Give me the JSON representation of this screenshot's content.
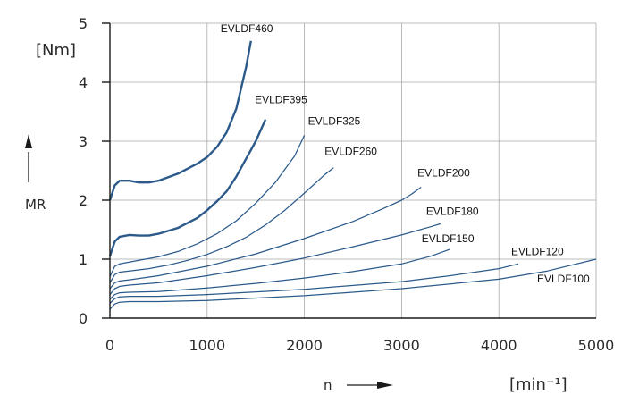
{
  "chart_data": {
    "type": "line",
    "title": "",
    "y_unit": "[Nm]",
    "y_title": "MR",
    "x_title": "n",
    "x_unit": "[min⁻¹]",
    "xlim": [
      0,
      5000
    ],
    "ylim": [
      0,
      5
    ],
    "x_ticks": [
      "0",
      "1000",
      "2000",
      "3000",
      "4000",
      "5000"
    ],
    "y_ticks": [
      "0",
      "1",
      "2",
      "3",
      "4",
      "5"
    ],
    "grid": true,
    "line_color": "#2b5a8a",
    "series": [
      {
        "name": "EVLDF460",
        "bold": true,
        "x": [
          0,
          50,
          100,
          200,
          300,
          400,
          500,
          700,
          900,
          1000,
          1100,
          1200,
          1300,
          1400,
          1450
        ],
        "y": [
          2.0,
          2.25,
          2.33,
          2.33,
          2.3,
          2.3,
          2.33,
          2.45,
          2.62,
          2.73,
          2.9,
          3.15,
          3.55,
          4.25,
          4.7
        ]
      },
      {
        "name": "EVLDF395",
        "bold": true,
        "x": [
          0,
          50,
          100,
          200,
          300,
          400,
          500,
          700,
          900,
          1000,
          1100,
          1200,
          1300,
          1400,
          1500,
          1600
        ],
        "y": [
          1.05,
          1.3,
          1.38,
          1.41,
          1.4,
          1.4,
          1.43,
          1.53,
          1.7,
          1.83,
          1.98,
          2.15,
          2.4,
          2.7,
          3.0,
          3.37
        ]
      },
      {
        "name": "EVLDF325",
        "bold": false,
        "x": [
          0,
          50,
          100,
          200,
          300,
          500,
          700,
          900,
          1100,
          1300,
          1500,
          1700,
          1900,
          2000
        ],
        "y": [
          0.7,
          0.88,
          0.92,
          0.95,
          0.98,
          1.04,
          1.13,
          1.26,
          1.43,
          1.65,
          1.95,
          2.3,
          2.75,
          3.1
        ]
      },
      {
        "name": "EVLDF260",
        "bold": false,
        "x": [
          0,
          50,
          100,
          200,
          400,
          600,
          800,
          1000,
          1200,
          1400,
          1600,
          1800,
          2000,
          2200,
          2300
        ],
        "y": [
          0.6,
          0.74,
          0.78,
          0.8,
          0.84,
          0.9,
          0.98,
          1.08,
          1.21,
          1.37,
          1.58,
          1.83,
          2.12,
          2.42,
          2.55
        ]
      },
      {
        "name": "EVLDF200",
        "bold": false,
        "x": [
          0,
          50,
          100,
          200,
          500,
          1000,
          1500,
          2000,
          2500,
          2800,
          3000,
          3100,
          3200
        ],
        "y": [
          0.5,
          0.6,
          0.63,
          0.65,
          0.72,
          0.88,
          1.09,
          1.35,
          1.64,
          1.85,
          2.0,
          2.1,
          2.22
        ]
      },
      {
        "name": "EVLDF180",
        "bold": false,
        "x": [
          0,
          50,
          100,
          200,
          500,
          1000,
          1500,
          2000,
          2500,
          3000,
          3300,
          3400
        ],
        "y": [
          0.4,
          0.5,
          0.54,
          0.56,
          0.6,
          0.72,
          0.86,
          1.02,
          1.21,
          1.41,
          1.55,
          1.6
        ]
      },
      {
        "name": "EVLDF150",
        "bold": false,
        "x": [
          0,
          50,
          100,
          200,
          500,
          1000,
          1500,
          2000,
          2500,
          3000,
          3300,
          3500
        ],
        "y": [
          0.32,
          0.4,
          0.43,
          0.44,
          0.45,
          0.51,
          0.59,
          0.68,
          0.79,
          0.92,
          1.05,
          1.17
        ]
      },
      {
        "name": "EVLDF120",
        "bold": false,
        "x": [
          0,
          50,
          100,
          200,
          500,
          1000,
          2000,
          3000,
          3500,
          4000,
          4200
        ],
        "y": [
          0.25,
          0.33,
          0.36,
          0.37,
          0.37,
          0.4,
          0.49,
          0.62,
          0.72,
          0.84,
          0.92
        ]
      },
      {
        "name": "EVLDF100",
        "bold": false,
        "x": [
          0,
          50,
          100,
          200,
          500,
          1000,
          2000,
          3000,
          4000,
          4500,
          5000
        ],
        "y": [
          0.15,
          0.24,
          0.27,
          0.28,
          0.28,
          0.3,
          0.38,
          0.5,
          0.66,
          0.8,
          1.0
        ]
      }
    ]
  }
}
